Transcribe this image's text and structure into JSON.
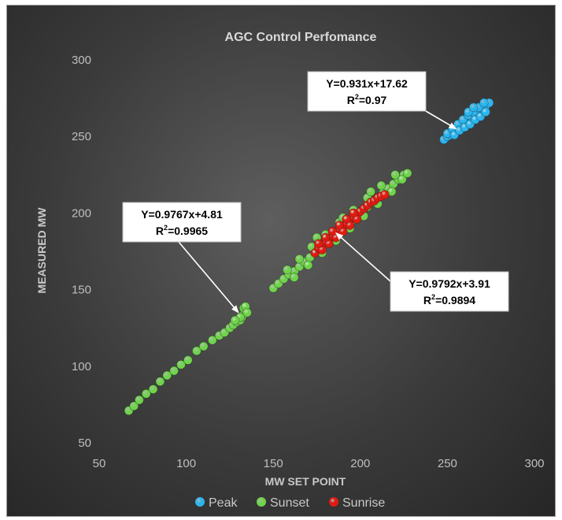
{
  "chart_data": {
    "type": "scatter",
    "title": "AGC Control  Perfomance",
    "xlabel": "MW SET POINT",
    "ylabel": "MEASURED MW",
    "xlim": [
      50,
      300
    ],
    "ylim": [
      50,
      300
    ],
    "xticks": [
      50,
      100,
      150,
      200,
      250,
      300
    ],
    "yticks": [
      50,
      100,
      150,
      200,
      250,
      300
    ],
    "grid": false,
    "legend_position": "bottom",
    "series": [
      {
        "name": "Peak",
        "color": "#2bb5ee",
        "points": [
          [
            248,
            248
          ],
          [
            250,
            250
          ],
          [
            252,
            251
          ],
          [
            254,
            253
          ],
          [
            256,
            255
          ],
          [
            258,
            257
          ],
          [
            260,
            259
          ],
          [
            262,
            261
          ],
          [
            264,
            262
          ],
          [
            266,
            264
          ],
          [
            268,
            266
          ],
          [
            270,
            268
          ],
          [
            272,
            270
          ],
          [
            274,
            272
          ],
          [
            250,
            252
          ],
          [
            253,
            255
          ],
          [
            256,
            258
          ],
          [
            259,
            261
          ],
          [
            262,
            264
          ],
          [
            265,
            266
          ],
          [
            268,
            269
          ],
          [
            271,
            272
          ],
          [
            254,
            251
          ],
          [
            257,
            254
          ],
          [
            260,
            256
          ],
          [
            263,
            258
          ],
          [
            266,
            261
          ],
          [
            269,
            263
          ],
          [
            272,
            266
          ],
          [
            262,
            266
          ],
          [
            265,
            269
          ]
        ]
      },
      {
        "name": "Sunset",
        "color": "#6fd34c",
        "points": [
          [
            67,
            71
          ],
          [
            70,
            74
          ],
          [
            73,
            78
          ],
          [
            77,
            82
          ],
          [
            81,
            85
          ],
          [
            85,
            90
          ],
          [
            89,
            94
          ],
          [
            93,
            97
          ],
          [
            97,
            101
          ],
          [
            101,
            104
          ],
          [
            106,
            110
          ],
          [
            110,
            113
          ],
          [
            115,
            117
          ],
          [
            119,
            120
          ],
          [
            122,
            122
          ],
          [
            125,
            125
          ],
          [
            127,
            127
          ],
          [
            129,
            129
          ],
          [
            131,
            130
          ],
          [
            132,
            132
          ],
          [
            133,
            134
          ],
          [
            134,
            136
          ],
          [
            133,
            138
          ],
          [
            134,
            139
          ],
          [
            135,
            135
          ],
          [
            131,
            132
          ],
          [
            128,
            130
          ],
          [
            150,
            151
          ],
          [
            153,
            154
          ],
          [
            156,
            157
          ],
          [
            159,
            160
          ],
          [
            162,
            162
          ],
          [
            165,
            165
          ],
          [
            168,
            168
          ],
          [
            171,
            171
          ],
          [
            174,
            174
          ],
          [
            177,
            177
          ],
          [
            180,
            180
          ],
          [
            183,
            183
          ],
          [
            186,
            186
          ],
          [
            189,
            189
          ],
          [
            192,
            192
          ],
          [
            195,
            195
          ],
          [
            198,
            198
          ],
          [
            201,
            201
          ],
          [
            204,
            204
          ],
          [
            207,
            207
          ],
          [
            210,
            210
          ],
          [
            213,
            213
          ],
          [
            216,
            216
          ],
          [
            219,
            219
          ],
          [
            222,
            222
          ],
          [
            225,
            225
          ],
          [
            158,
            163
          ],
          [
            165,
            170
          ],
          [
            172,
            178
          ],
          [
            180,
            186
          ],
          [
            188,
            194
          ],
          [
            196,
            202
          ],
          [
            204,
            210
          ],
          [
            212,
            218
          ],
          [
            220,
            225
          ],
          [
            162,
            158
          ],
          [
            170,
            166
          ],
          [
            178,
            174
          ],
          [
            186,
            182
          ],
          [
            194,
            190
          ],
          [
            202,
            198
          ],
          [
            210,
            206
          ],
          [
            218,
            214
          ],
          [
            224,
            222
          ],
          [
            227,
            226
          ],
          [
            175,
            184
          ],
          [
            190,
            197
          ],
          [
            206,
            214
          ]
        ]
      },
      {
        "name": "Sunrise",
        "color": "#e01b12",
        "points": [
          [
            174,
            174
          ],
          [
            176,
            177
          ],
          [
            178,
            179
          ],
          [
            180,
            181
          ],
          [
            182,
            183
          ],
          [
            184,
            185
          ],
          [
            186,
            187
          ],
          [
            188,
            189
          ],
          [
            190,
            191
          ],
          [
            192,
            193
          ],
          [
            194,
            195
          ],
          [
            196,
            197
          ],
          [
            198,
            199
          ],
          [
            200,
            201
          ],
          [
            202,
            203
          ],
          [
            204,
            205
          ],
          [
            206,
            207
          ],
          [
            208,
            208
          ],
          [
            210,
            210
          ],
          [
            212,
            211
          ],
          [
            214,
            212
          ],
          [
            178,
            176
          ],
          [
            182,
            180
          ],
          [
            186,
            184
          ],
          [
            190,
            188
          ],
          [
            194,
            192
          ],
          [
            198,
            196
          ],
          [
            176,
            180
          ],
          [
            180,
            184
          ],
          [
            184,
            188
          ],
          [
            188,
            192
          ],
          [
            192,
            196
          ],
          [
            196,
            200
          ]
        ]
      }
    ],
    "annotations": [
      {
        "equation": "Y=0.931x+17.62",
        "r_base": "R",
        "r_sup": "2",
        "r_value": "=0.97",
        "target": [
          255,
          255
        ]
      },
      {
        "equation": "Y=0.9767x+4.81",
        "r_base": "R",
        "r_sup": "2",
        "r_value": "=0.9965",
        "target": [
          130,
          135
        ]
      },
      {
        "equation": "Y=0.9792x+3.91",
        "r_base": "R",
        "r_sup": "2",
        "r_value": "=0.9894",
        "target": [
          186,
          187
        ]
      }
    ]
  }
}
